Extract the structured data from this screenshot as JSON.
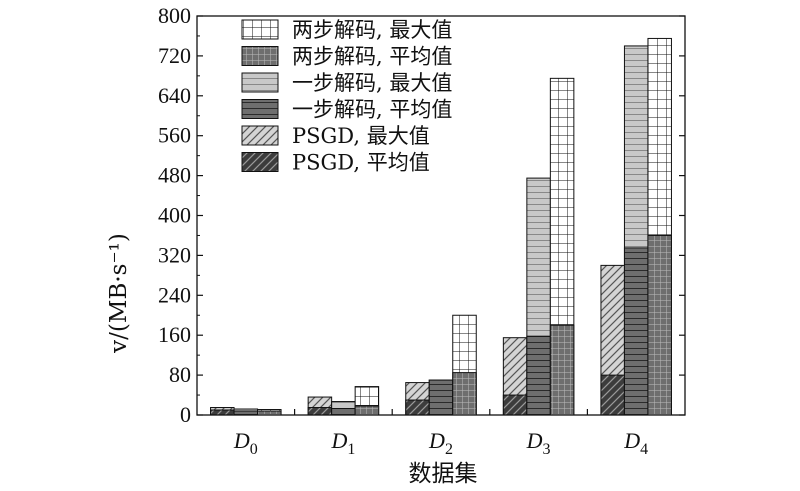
{
  "chart_data": {
    "type": "bar",
    "title": "",
    "xlabel": "数据集",
    "ylabel": "v/(MB·s⁻¹)",
    "ylim": [
      0,
      800
    ],
    "yticks": [
      "0",
      "80",
      "160",
      "240",
      "320",
      "400",
      "480",
      "560",
      "640",
      "720",
      "800"
    ],
    "categories": [
      {
        "base": "D",
        "sub": "0"
      },
      {
        "base": "D",
        "sub": "1"
      },
      {
        "base": "D",
        "sub": "2"
      },
      {
        "base": "D",
        "sub": "3"
      },
      {
        "base": "D",
        "sub": "4"
      }
    ],
    "legend_position": "top-left",
    "groups": [
      {
        "name": "PSGD",
        "max": [
          15,
          36,
          65,
          155,
          300
        ],
        "avg": [
          10,
          15,
          30,
          40,
          80
        ],
        "max_pattern": "diagonal",
        "avg_pattern": "diagonal-dark"
      },
      {
        "name": "一步解码",
        "max": [
          12,
          27,
          70,
          475,
          740
        ],
        "avg": [
          8,
          13,
          70,
          158,
          335
        ],
        "max_pattern": "horizontal",
        "avg_pattern": "horizontal-dark"
      },
      {
        "name": "两步解码",
        "max": [
          11,
          57,
          200,
          675,
          755
        ],
        "avg": [
          8,
          18,
          85,
          180,
          360
        ],
        "max_pattern": "grid",
        "avg_pattern": "grid-dark"
      }
    ],
    "legend": [
      {
        "label": "两步解码, 最大值",
        "pattern": "grid"
      },
      {
        "label": "两步解码, 平均值",
        "pattern": "grid-dark"
      },
      {
        "label": "一步解码, 最大值",
        "pattern": "horizontal"
      },
      {
        "label": "一步解码, 平均值",
        "pattern": "horizontal-dark"
      },
      {
        "label": "PSGD, 最大值",
        "pattern": "diagonal"
      },
      {
        "label": "PSGD, 平均值",
        "pattern": "diagonal-dark"
      }
    ],
    "colors": {
      "max_fill": "#c8c8c8",
      "avg_fill": "#6e6e6e",
      "grid_max_fill": "#ffffff",
      "psgd_avg_fill": "#3c3c3c",
      "line": "#111111"
    }
  }
}
